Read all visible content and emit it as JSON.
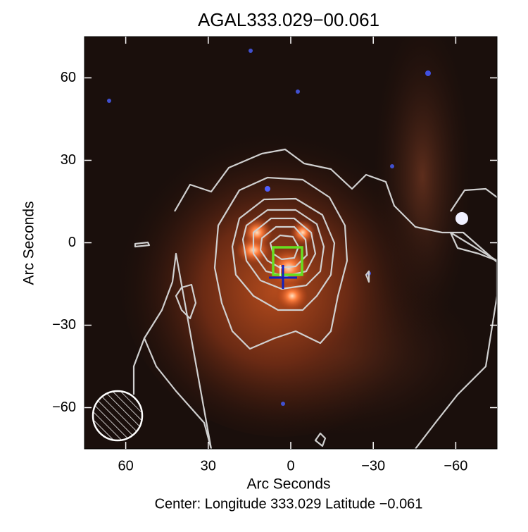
{
  "chart_data": {
    "type": "image",
    "title": "AGAL333.029−00.061",
    "xlabel": "Arc Seconds",
    "ylabel": "Arc Seconds",
    "footer": "Center:  Longitude 333.029 Latitude −0.061",
    "xlim": [
      75,
      -75
    ],
    "ylim": [
      -75,
      75
    ],
    "xticks": [
      60,
      30,
      0,
      {
        "value": -30,
        "label": "−30"
      },
      {
        "value": -60,
        "label": "−60"
      }
    ],
    "yticks": [
      {
        "value": -60,
        "label": "−60"
      },
      {
        "value": -30,
        "label": "−30"
      },
      0,
      30,
      60
    ]
  }
}
